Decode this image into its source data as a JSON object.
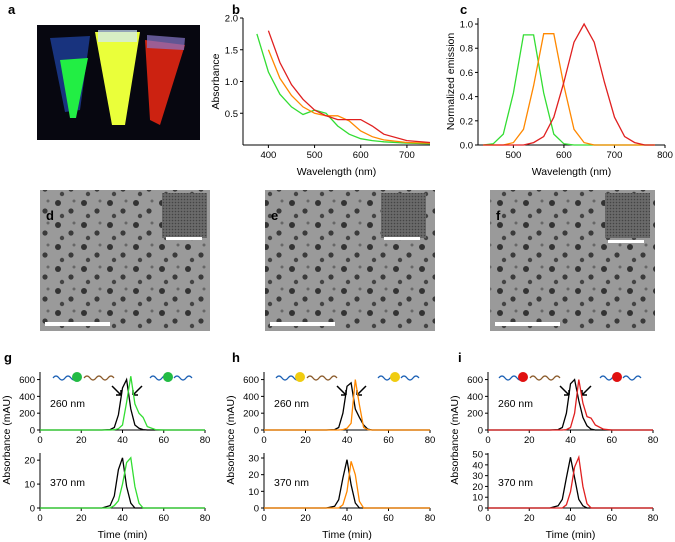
{
  "panel_labels": {
    "a": "a",
    "b": "b",
    "c": "c",
    "d": "d",
    "e": "e",
    "f": "f",
    "g": "g",
    "h": "h",
    "i": "i"
  },
  "chart_data": [
    {
      "type": "line",
      "xlabel": "Wavelength (nm)",
      "ylabel": "Absorbance",
      "x": [
        350,
        375,
        400,
        425,
        450,
        475,
        500,
        525,
        550,
        575,
        600,
        625,
        650,
        700,
        750
      ],
      "series": [
        {
          "name": "green",
          "color": "#33dd33",
          "values": [
            null,
            1.75,
            1.15,
            0.8,
            0.6,
            0.48,
            0.55,
            0.5,
            0.3,
            0.17,
            0.1,
            0.07,
            0.05,
            0.03,
            0.02
          ]
        },
        {
          "name": "orange",
          "color": "#ff8800",
          "values": [
            null,
            null,
            1.5,
            1.05,
            0.78,
            0.6,
            0.5,
            0.46,
            0.46,
            0.38,
            0.22,
            0.13,
            0.08,
            0.04,
            0.03
          ]
        },
        {
          "name": "red",
          "color": "#e02020",
          "values": [
            null,
            null,
            1.8,
            1.3,
            0.95,
            0.72,
            0.55,
            0.46,
            0.4,
            0.4,
            0.4,
            0.3,
            0.17,
            0.07,
            0.04
          ]
        }
      ],
      "xlim": [
        345,
        750
      ],
      "xticks": [
        400,
        500,
        600,
        700
      ],
      "ylim": [
        0,
        2
      ],
      "yticks": [
        0.5,
        {
          "value": 1,
          "label": "1.0"
        },
        1.5,
        {
          "value": 2,
          "label": "2.0"
        }
      ]
    },
    {
      "type": "line",
      "xlabel": "Wavelength (nm)",
      "ylabel": "Normalized emission",
      "x": [
        440,
        460,
        480,
        500,
        520,
        540,
        560,
        580,
        600,
        620,
        640,
        660,
        680,
        700,
        720,
        740,
        760,
        780
      ],
      "series": [
        {
          "name": "green",
          "color": "#33dd33",
          "values": [
            0,
            0.01,
            0.09,
            0.43,
            0.91,
            0.91,
            0.43,
            0.09,
            0.01,
            0,
            0,
            0,
            0,
            0,
            0,
            0,
            0,
            0
          ]
        },
        {
          "name": "orange",
          "color": "#ff8800",
          "values": [
            0,
            0,
            0,
            0.02,
            0.13,
            0.49,
            0.92,
            0.92,
            0.49,
            0.13,
            0.02,
            0,
            0,
            0,
            0,
            0,
            0,
            0
          ]
        },
        {
          "name": "red",
          "color": "#e02020",
          "values": [
            0,
            0,
            0,
            0,
            0,
            0.02,
            0.07,
            0.23,
            0.52,
            0.85,
            1,
            0.85,
            0.52,
            0.23,
            0.07,
            0.02,
            0,
            0
          ]
        }
      ],
      "xlim": [
        430,
        800
      ],
      "xticks": [
        500,
        600,
        700,
        800
      ],
      "ylim": [
        0,
        1.05
      ],
      "yticks": [
        {
          "value": 0,
          "label": "0.0"
        },
        0.2,
        0.4,
        0.6,
        0.8,
        {
          "value": 1,
          "label": "1.0"
        }
      ]
    },
    {
      "type": "line",
      "ylabel": "Absorbance (mAU)",
      "annotation": "260 nm",
      "x": [
        0,
        30,
        34,
        36,
        38,
        40,
        42,
        44,
        46,
        48,
        50,
        52,
        56,
        60,
        80
      ],
      "series": [
        {
          "name": "control",
          "color": "#000000",
          "values": [
            0,
            0,
            5,
            30,
            180,
            500,
            600,
            250,
            60,
            20,
            5,
            0,
            0,
            0,
            0
          ]
        },
        {
          "name": "green",
          "color": "#33dd33",
          "values": [
            0,
            0,
            0,
            3,
            15,
            60,
            330,
            640,
            310,
            200,
            150,
            40,
            5,
            0,
            0
          ]
        }
      ],
      "xlim": [
        0,
        80
      ],
      "xticks": [
        0,
        20,
        40,
        60,
        80
      ],
      "ylim": [
        0,
        690
      ],
      "yticks": [
        0,
        200,
        400,
        600
      ]
    },
    {
      "type": "line",
      "xlabel": "Time (min)",
      "annotation": "370 nm",
      "x": [
        0,
        30,
        34,
        36,
        38,
        40,
        42,
        44,
        46,
        48,
        50,
        52,
        56,
        60,
        80
      ],
      "series": [
        {
          "name": "control",
          "color": "#000000",
          "values": [
            0,
            0,
            1,
            5,
            16,
            21,
            9,
            2,
            0,
            0,
            0,
            0,
            0,
            0,
            0
          ]
        },
        {
          "name": "green",
          "color": "#33dd33",
          "values": [
            0,
            0,
            0,
            1,
            3,
            10,
            19,
            21,
            9,
            2,
            0,
            0,
            0,
            0,
            0
          ]
        }
      ],
      "xlim": [
        0,
        80
      ],
      "xticks": [
        0,
        20,
        40,
        60,
        80
      ],
      "ylim": [
        0,
        23
      ],
      "yticks": [
        0,
        10,
        20
      ]
    },
    {
      "type": "line",
      "ylabel": "Absorbance (mAU)",
      "annotation": "260 nm",
      "x": [
        0,
        30,
        34,
        36,
        38,
        40,
        42,
        44,
        46,
        48,
        50,
        52,
        56,
        60,
        80
      ],
      "series": [
        {
          "name": "control",
          "color": "#000000",
          "values": [
            0,
            0,
            5,
            30,
            200,
            520,
            560,
            250,
            150,
            60,
            10,
            0,
            0,
            0,
            0
          ]
        },
        {
          "name": "orange",
          "color": "#ff8800",
          "values": [
            0,
            0,
            0,
            0,
            5,
            20,
            80,
            600,
            300,
            30,
            5,
            0,
            0,
            0,
            0
          ]
        }
      ],
      "xlim": [
        0,
        80
      ],
      "xticks": [
        0,
        20,
        40,
        60,
        80
      ],
      "ylim": [
        0,
        690
      ],
      "yticks": [
        0,
        200,
        400,
        600
      ]
    },
    {
      "type": "line",
      "xlabel": "Time (min)",
      "annotation": "370 nm",
      "x": [
        0,
        30,
        34,
        36,
        38,
        40,
        42,
        44,
        46,
        48,
        50,
        52,
        56,
        60,
        80
      ],
      "series": [
        {
          "name": "control",
          "color": "#000000",
          "values": [
            0,
            0,
            1,
            5,
            18,
            29,
            14,
            3,
            0,
            0,
            0,
            0,
            0,
            0,
            0
          ]
        },
        {
          "name": "orange",
          "color": "#ff8800",
          "values": [
            0,
            0,
            0,
            0,
            2,
            10,
            28,
            20,
            4,
            0,
            0,
            0,
            0,
            0,
            0
          ]
        }
      ],
      "xlim": [
        0,
        80
      ],
      "xticks": [
        0,
        20,
        40,
        60,
        80
      ],
      "ylim": [
        0,
        33
      ],
      "yticks": [
        0,
        10,
        20,
        30
      ]
    },
    {
      "type": "line",
      "ylabel": "Absorbance (mAU)",
      "annotation": "260 nm",
      "x": [
        0,
        30,
        34,
        36,
        38,
        40,
        42,
        44,
        46,
        48,
        50,
        52,
        56,
        60,
        80
      ],
      "series": [
        {
          "name": "control",
          "color": "#000000",
          "values": [
            0,
            0,
            5,
            30,
            200,
            550,
            600,
            350,
            150,
            50,
            10,
            0,
            0,
            0,
            0
          ]
        },
        {
          "name": "red",
          "color": "#e02020",
          "values": [
            0,
            0,
            0,
            0,
            5,
            30,
            200,
            600,
            320,
            160,
            140,
            60,
            10,
            0,
            0
          ]
        }
      ],
      "xlim": [
        0,
        80
      ],
      "xticks": [
        0,
        20,
        40,
        60,
        80
      ],
      "ylim": [
        0,
        690
      ],
      "yticks": [
        0,
        200,
        400,
        600
      ]
    },
    {
      "type": "line",
      "xlabel": "Time (min)",
      "annotation": "370 nm",
      "x": [
        0,
        30,
        34,
        36,
        38,
        40,
        42,
        44,
        46,
        48,
        50,
        52,
        56,
        60,
        80
      ],
      "series": [
        {
          "name": "control",
          "color": "#000000",
          "values": [
            0,
            0,
            2,
            8,
            28,
            47,
            28,
            8,
            2,
            0,
            0,
            0,
            0,
            0,
            0
          ]
        },
        {
          "name": "red",
          "color": "#e02020",
          "values": [
            0,
            0,
            0,
            0,
            3,
            15,
            38,
            47,
            20,
            4,
            0,
            0,
            0,
            0,
            0
          ]
        }
      ],
      "xlim": [
        0,
        80
      ],
      "xticks": [
        0,
        20,
        40,
        60,
        80
      ],
      "ylim": [
        0,
        51
      ],
      "yticks": [
        0,
        10,
        20,
        30,
        40,
        50
      ]
    }
  ]
}
